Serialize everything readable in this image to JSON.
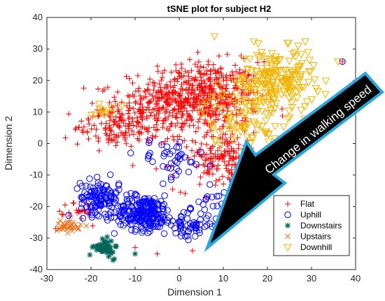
{
  "chart_data": {
    "type": "scatter",
    "title": "tSNE plot for subject H2",
    "xlabel": "Dimension 1",
    "ylabel": "Dimension 2",
    "xlim": [
      -30,
      40
    ],
    "ylim": [
      -40,
      40
    ],
    "xticks": [
      "-30",
      "-20",
      "-10",
      "0",
      "10",
      "20",
      "30",
      "40"
    ],
    "yticks": [
      "-40",
      "-30",
      "-20",
      "-10",
      "0",
      "10",
      "20",
      "30",
      "40"
    ],
    "grid": false,
    "legend_position": "bottom-right",
    "annotation": "Change in walking speed",
    "series": [
      {
        "name": "Flat",
        "marker": "plus",
        "color": "#ff0000",
        "clusters": [
          {
            "center": [
              5,
              15
            ],
            "spread": [
              12,
              10
            ],
            "count": 520
          },
          {
            "center": [
              -8,
              10
            ],
            "spread": [
              9,
              8
            ],
            "count": 160
          },
          {
            "center": [
              10,
              -5
            ],
            "spread": [
              10,
              9
            ],
            "count": 200
          },
          {
            "center": [
              -15,
              5
            ],
            "spread": [
              8,
              6
            ],
            "count": 90
          },
          {
            "center": [
              -22,
              -22
            ],
            "spread": [
              3,
              4
            ],
            "count": 25
          }
        ],
        "points": [
          [
            37,
            26
          ],
          [
            -28,
            -27
          ],
          [
            -25,
            -22
          ],
          [
            -18,
            -33
          ],
          [
            -5,
            -35
          ],
          [
            -10,
            -33
          ],
          [
            3,
            -34
          ]
        ]
      },
      {
        "name": "Uphill",
        "marker": "circle",
        "color": "#0000ff",
        "clusters": [
          {
            "center": [
              -8,
              -22
            ],
            "spread": [
              6,
              5
            ],
            "count": 220
          },
          {
            "center": [
              -18,
              -17
            ],
            "spread": [
              4,
              5
            ],
            "count": 110
          },
          {
            "center": [
              2,
              -26
            ],
            "spread": [
              5,
              4
            ],
            "count": 60
          },
          {
            "center": [
              -2,
              -5
            ],
            "spread": [
              7,
              6
            ],
            "count": 40
          },
          {
            "center": [
              10,
              -18
            ],
            "spread": [
              5,
              6
            ],
            "count": 30
          }
        ],
        "points": [
          [
            37,
            26
          ],
          [
            -11,
            -3
          ],
          [
            7,
            -7
          ]
        ]
      },
      {
        "name": "Downstairs",
        "marker": "asterisk",
        "color": "#00665a",
        "clusters": [
          {
            "center": [
              -17,
              -33
            ],
            "spread": [
              2,
              2.3
            ],
            "count": 55
          }
        ],
        "points": [
          [
            -10,
            -35
          ],
          [
            -15,
            -37
          ]
        ]
      },
      {
        "name": "Upstairs",
        "marker": "x",
        "color": "#e8701a",
        "clusters": [
          {
            "center": [
              -25,
              -26
            ],
            "spread": [
              2.5,
              2
            ],
            "count": 30
          }
        ],
        "points": [
          [
            -27,
            -27
          ],
          [
            -24,
            -25
          ]
        ]
      },
      {
        "name": "Downhill",
        "marker": "triangle",
        "color": "#f0b400",
        "clusters": [
          {
            "center": [
              22,
              20
            ],
            "spread": [
              8,
              9
            ],
            "count": 200
          },
          {
            "center": [
              14,
              8
            ],
            "spread": [
              8,
              8
            ],
            "count": 80
          },
          {
            "center": [
              -18,
              10
            ],
            "spread": [
              3,
              3
            ],
            "count": 10
          }
        ],
        "points": [
          [
            36,
            26
          ],
          [
            27,
            31
          ],
          [
            -13,
            12
          ],
          [
            8,
            34
          ]
        ]
      }
    ]
  }
}
